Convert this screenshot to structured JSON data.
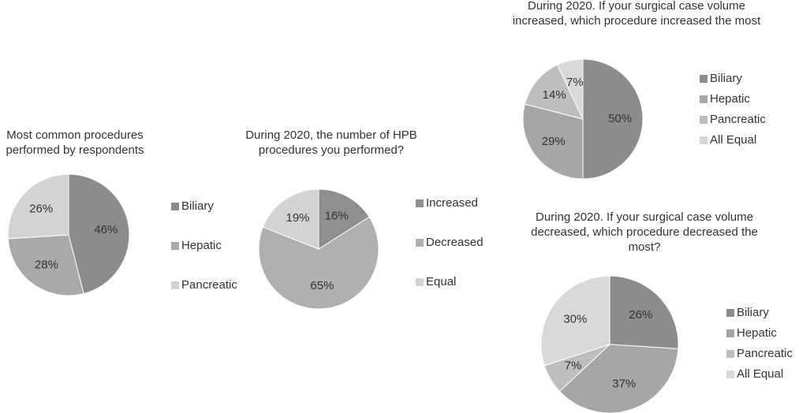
{
  "chart_data": [
    {
      "type": "pie",
      "title": "Most common procedures performed by respondents",
      "categories": [
        "Biliary",
        "Hepatic",
        "Pancreatic"
      ],
      "values": [
        46,
        28,
        26
      ],
      "value_labels": [
        "46%",
        "28%",
        "26%"
      ],
      "colors": [
        "#8c8c8c",
        "#a9a9a9",
        "#d3d3d3"
      ]
    },
    {
      "type": "pie",
      "title": "During 2020, the number of HPB procedures you performed?",
      "categories": [
        "Increased",
        "Decreased",
        "Equal"
      ],
      "values": [
        16,
        65,
        19
      ],
      "value_labels": [
        "16%",
        "65%",
        "19%"
      ],
      "colors": [
        "#8f8f8f",
        "#b0b0b0",
        "#d3d3d3"
      ]
    },
    {
      "type": "pie",
      "title": "During 2020. If your surgical case volume increased, which procedure increased the most",
      "categories": [
        "Biliary",
        "Hepatic",
        "Pancreatic",
        "All Equal"
      ],
      "values": [
        50,
        29,
        14,
        7
      ],
      "value_labels": [
        "50%",
        "29%",
        "14%",
        "7%"
      ],
      "colors": [
        "#8c8c8c",
        "#a6a6a6",
        "#bebebe",
        "#d9d9d9"
      ]
    },
    {
      "type": "pie",
      "title": "During 2020. If your surgical case volume decreased, which procedure decreased the most?",
      "categories": [
        "Biliary",
        "Hepatic",
        "Pancreatic",
        "All Equal"
      ],
      "values": [
        26,
        37,
        7,
        30
      ],
      "value_labels": [
        "26%",
        "37%",
        "7%",
        "30%"
      ],
      "colors": [
        "#8c8c8c",
        "#a6a6a6",
        "#bebebe",
        "#d9d9d9"
      ]
    }
  ]
}
